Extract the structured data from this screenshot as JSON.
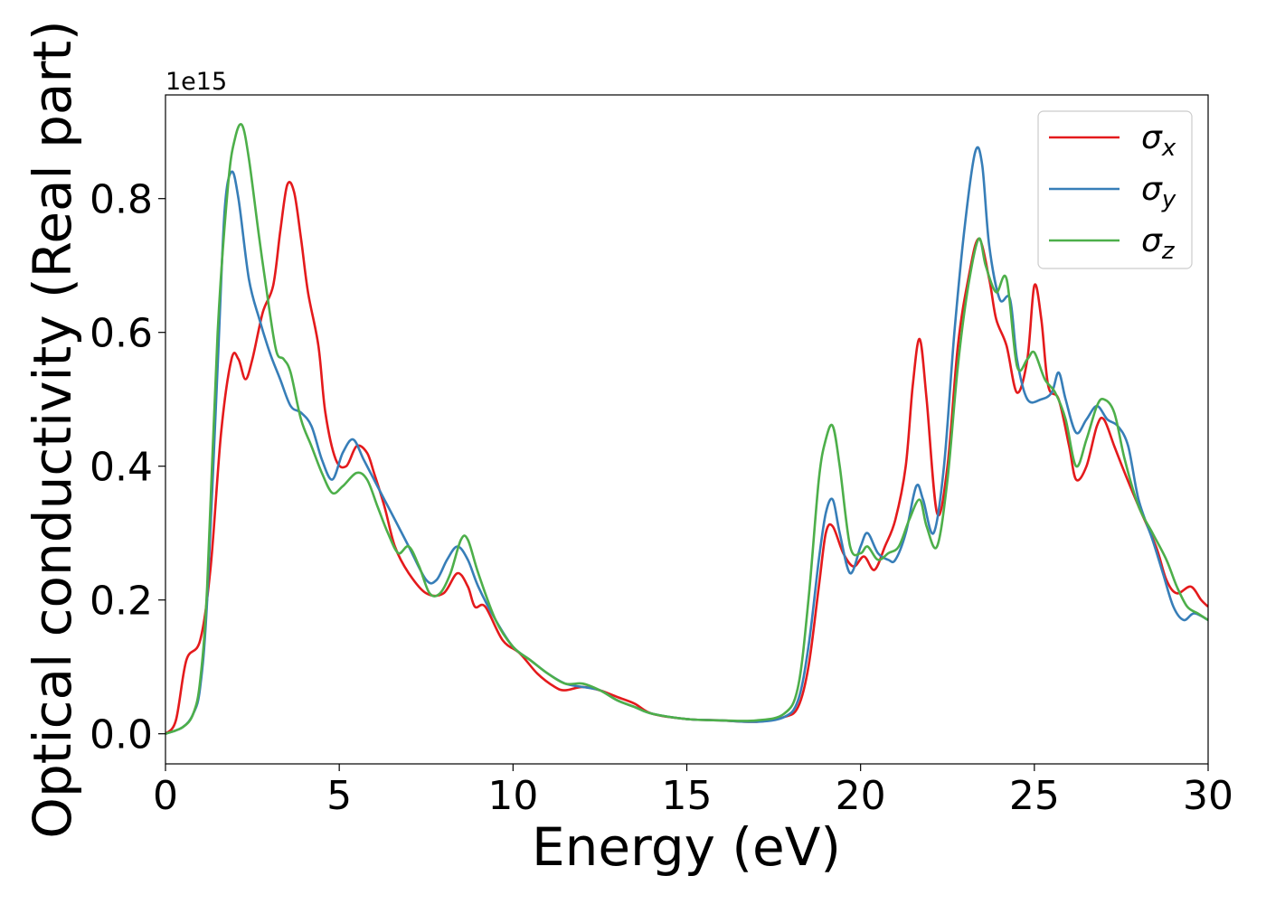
{
  "chart_data": {
    "type": "line",
    "xlabel": "Energy (eV)",
    "ylabel": "Optical conductivity (Real part)",
    "offset_label": "1e15",
    "xlim": [
      0,
      30
    ],
    "ylim": [
      -0.045,
      0.955
    ],
    "x_ticks": [
      "0",
      "5",
      "10",
      "15",
      "20",
      "25",
      "30"
    ],
    "y_ticks": [
      "0.0",
      "0.2",
      "0.4",
      "0.6",
      "0.8"
    ],
    "grid": false,
    "legend_position": "top-right",
    "series": [
      {
        "name": "σ",
        "name_subscript": "x",
        "color": "#e41a1c",
        "points": [
          [
            0,
            0
          ],
          [
            0.3,
            0.02
          ],
          [
            0.6,
            0.11
          ],
          [
            1.0,
            0.14
          ],
          [
            1.3,
            0.25
          ],
          [
            1.6,
            0.45
          ],
          [
            1.9,
            0.56
          ],
          [
            2.1,
            0.56
          ],
          [
            2.3,
            0.53
          ],
          [
            2.5,
            0.56
          ],
          [
            2.8,
            0.63
          ],
          [
            3.1,
            0.67
          ],
          [
            3.3,
            0.75
          ],
          [
            3.5,
            0.82
          ],
          [
            3.7,
            0.81
          ],
          [
            3.9,
            0.74
          ],
          [
            4.1,
            0.66
          ],
          [
            4.4,
            0.58
          ],
          [
            4.6,
            0.48
          ],
          [
            4.9,
            0.41
          ],
          [
            5.2,
            0.4
          ],
          [
            5.5,
            0.43
          ],
          [
            5.8,
            0.42
          ],
          [
            6.0,
            0.39
          ],
          [
            6.3,
            0.34
          ],
          [
            6.6,
            0.28
          ],
          [
            7.0,
            0.24
          ],
          [
            7.5,
            0.21
          ],
          [
            8.0,
            0.21
          ],
          [
            8.4,
            0.24
          ],
          [
            8.7,
            0.22
          ],
          [
            8.9,
            0.19
          ],
          [
            9.2,
            0.19
          ],
          [
            9.7,
            0.14
          ],
          [
            10.2,
            0.12
          ],
          [
            10.7,
            0.09
          ],
          [
            11.2,
            0.07
          ],
          [
            11.5,
            0.065
          ],
          [
            12.0,
            0.07
          ],
          [
            12.5,
            0.065
          ],
          [
            13.0,
            0.055
          ],
          [
            13.5,
            0.045
          ],
          [
            14.0,
            0.03
          ],
          [
            15.0,
            0.022
          ],
          [
            16.0,
            0.02
          ],
          [
            17.0,
            0.018
          ],
          [
            17.8,
            0.025
          ],
          [
            18.2,
            0.04
          ],
          [
            18.5,
            0.1
          ],
          [
            18.8,
            0.22
          ],
          [
            19.0,
            0.3
          ],
          [
            19.2,
            0.31
          ],
          [
            19.5,
            0.27
          ],
          [
            19.8,
            0.25
          ],
          [
            20.1,
            0.265
          ],
          [
            20.4,
            0.245
          ],
          [
            20.7,
            0.28
          ],
          [
            21.0,
            0.32
          ],
          [
            21.3,
            0.4
          ],
          [
            21.5,
            0.52
          ],
          [
            21.7,
            0.59
          ],
          [
            21.9,
            0.5
          ],
          [
            22.2,
            0.33
          ],
          [
            22.5,
            0.4
          ],
          [
            22.8,
            0.58
          ],
          [
            23.1,
            0.68
          ],
          [
            23.4,
            0.74
          ],
          [
            23.7,
            0.68
          ],
          [
            23.9,
            0.62
          ],
          [
            24.2,
            0.58
          ],
          [
            24.5,
            0.51
          ],
          [
            24.8,
            0.56
          ],
          [
            25.0,
            0.67
          ],
          [
            25.2,
            0.62
          ],
          [
            25.4,
            0.52
          ],
          [
            25.7,
            0.5
          ],
          [
            26.0,
            0.43
          ],
          [
            26.2,
            0.38
          ],
          [
            26.5,
            0.4
          ],
          [
            26.8,
            0.46
          ],
          [
            27.0,
            0.47
          ],
          [
            27.3,
            0.43
          ],
          [
            27.6,
            0.39
          ],
          [
            28.0,
            0.34
          ],
          [
            28.5,
            0.28
          ],
          [
            28.8,
            0.23
          ],
          [
            29.1,
            0.21
          ],
          [
            29.5,
            0.22
          ],
          [
            29.8,
            0.2
          ],
          [
            30.0,
            0.19
          ]
        ]
      },
      {
        "name": "σ",
        "name_subscript": "y",
        "color": "#377eb8",
        "points": [
          [
            0,
            0
          ],
          [
            0.5,
            0.01
          ],
          [
            0.8,
            0.03
          ],
          [
            1.0,
            0.07
          ],
          [
            1.2,
            0.2
          ],
          [
            1.5,
            0.55
          ],
          [
            1.7,
            0.78
          ],
          [
            1.9,
            0.84
          ],
          [
            2.1,
            0.8
          ],
          [
            2.4,
            0.68
          ],
          [
            2.7,
            0.62
          ],
          [
            3.0,
            0.57
          ],
          [
            3.3,
            0.53
          ],
          [
            3.6,
            0.49
          ],
          [
            3.9,
            0.48
          ],
          [
            4.2,
            0.46
          ],
          [
            4.5,
            0.41
          ],
          [
            4.8,
            0.38
          ],
          [
            5.1,
            0.42
          ],
          [
            5.4,
            0.44
          ],
          [
            5.7,
            0.41
          ],
          [
            6.0,
            0.38
          ],
          [
            6.3,
            0.35
          ],
          [
            6.6,
            0.32
          ],
          [
            7.0,
            0.28
          ],
          [
            7.5,
            0.23
          ],
          [
            7.8,
            0.23
          ],
          [
            8.1,
            0.26
          ],
          [
            8.4,
            0.28
          ],
          [
            8.7,
            0.26
          ],
          [
            9.0,
            0.22
          ],
          [
            9.5,
            0.17
          ],
          [
            10.0,
            0.13
          ],
          [
            10.5,
            0.11
          ],
          [
            11.0,
            0.09
          ],
          [
            11.5,
            0.075
          ],
          [
            12.0,
            0.07
          ],
          [
            12.5,
            0.065
          ],
          [
            13.0,
            0.05
          ],
          [
            13.5,
            0.04
          ],
          [
            14.0,
            0.03
          ],
          [
            15.0,
            0.022
          ],
          [
            16.0,
            0.02
          ],
          [
            17.0,
            0.018
          ],
          [
            17.8,
            0.025
          ],
          [
            18.2,
            0.05
          ],
          [
            18.5,
            0.13
          ],
          [
            18.8,
            0.26
          ],
          [
            19.0,
            0.33
          ],
          [
            19.2,
            0.35
          ],
          [
            19.4,
            0.3
          ],
          [
            19.7,
            0.24
          ],
          [
            20.0,
            0.28
          ],
          [
            20.2,
            0.3
          ],
          [
            20.5,
            0.27
          ],
          [
            20.8,
            0.26
          ],
          [
            21.0,
            0.26
          ],
          [
            21.3,
            0.3
          ],
          [
            21.6,
            0.37
          ],
          [
            21.8,
            0.35
          ],
          [
            22.1,
            0.3
          ],
          [
            22.4,
            0.4
          ],
          [
            22.7,
            0.6
          ],
          [
            23.0,
            0.76
          ],
          [
            23.3,
            0.87
          ],
          [
            23.5,
            0.85
          ],
          [
            23.7,
            0.73
          ],
          [
            24.0,
            0.65
          ],
          [
            24.3,
            0.65
          ],
          [
            24.5,
            0.56
          ],
          [
            24.8,
            0.5
          ],
          [
            25.2,
            0.5
          ],
          [
            25.5,
            0.51
          ],
          [
            25.7,
            0.54
          ],
          [
            25.9,
            0.5
          ],
          [
            26.2,
            0.45
          ],
          [
            26.5,
            0.47
          ],
          [
            26.8,
            0.49
          ],
          [
            27.1,
            0.47
          ],
          [
            27.4,
            0.46
          ],
          [
            27.7,
            0.43
          ],
          [
            28.0,
            0.35
          ],
          [
            28.4,
            0.29
          ],
          [
            28.7,
            0.24
          ],
          [
            29.0,
            0.19
          ],
          [
            29.3,
            0.17
          ],
          [
            29.6,
            0.18
          ],
          [
            30.0,
            0.17
          ]
        ]
      },
      {
        "name": "σ",
        "name_subscript": "z",
        "color": "#4daf4a",
        "points": [
          [
            0,
            0
          ],
          [
            0.5,
            0.01
          ],
          [
            0.8,
            0.03
          ],
          [
            1.0,
            0.08
          ],
          [
            1.2,
            0.22
          ],
          [
            1.5,
            0.6
          ],
          [
            1.8,
            0.82
          ],
          [
            2.0,
            0.89
          ],
          [
            2.2,
            0.91
          ],
          [
            2.4,
            0.86
          ],
          [
            2.7,
            0.74
          ],
          [
            3.0,
            0.63
          ],
          [
            3.2,
            0.57
          ],
          [
            3.4,
            0.56
          ],
          [
            3.6,
            0.54
          ],
          [
            3.9,
            0.47
          ],
          [
            4.2,
            0.43
          ],
          [
            4.5,
            0.39
          ],
          [
            4.8,
            0.36
          ],
          [
            5.1,
            0.37
          ],
          [
            5.5,
            0.39
          ],
          [
            5.8,
            0.38
          ],
          [
            6.1,
            0.34
          ],
          [
            6.4,
            0.3
          ],
          [
            6.7,
            0.27
          ],
          [
            7.0,
            0.28
          ],
          [
            7.3,
            0.25
          ],
          [
            7.6,
            0.21
          ],
          [
            7.9,
            0.21
          ],
          [
            8.2,
            0.24
          ],
          [
            8.5,
            0.29
          ],
          [
            8.7,
            0.29
          ],
          [
            9.0,
            0.24
          ],
          [
            9.5,
            0.17
          ],
          [
            10.0,
            0.13
          ],
          [
            10.5,
            0.11
          ],
          [
            11.0,
            0.09
          ],
          [
            11.5,
            0.075
          ],
          [
            12.0,
            0.075
          ],
          [
            12.5,
            0.065
          ],
          [
            13.0,
            0.05
          ],
          [
            13.5,
            0.04
          ],
          [
            14.0,
            0.03
          ],
          [
            15.0,
            0.022
          ],
          [
            16.0,
            0.02
          ],
          [
            17.0,
            0.02
          ],
          [
            17.8,
            0.03
          ],
          [
            18.2,
            0.07
          ],
          [
            18.5,
            0.2
          ],
          [
            18.8,
            0.38
          ],
          [
            19.0,
            0.44
          ],
          [
            19.2,
            0.46
          ],
          [
            19.4,
            0.4
          ],
          [
            19.7,
            0.28
          ],
          [
            20.0,
            0.27
          ],
          [
            20.2,
            0.28
          ],
          [
            20.5,
            0.26
          ],
          [
            20.8,
            0.27
          ],
          [
            21.1,
            0.28
          ],
          [
            21.4,
            0.32
          ],
          [
            21.7,
            0.35
          ],
          [
            21.9,
            0.31
          ],
          [
            22.2,
            0.28
          ],
          [
            22.5,
            0.38
          ],
          [
            22.8,
            0.55
          ],
          [
            23.1,
            0.67
          ],
          [
            23.4,
            0.74
          ],
          [
            23.6,
            0.7
          ],
          [
            23.9,
            0.66
          ],
          [
            24.2,
            0.68
          ],
          [
            24.5,
            0.55
          ],
          [
            24.8,
            0.56
          ],
          [
            25.0,
            0.57
          ],
          [
            25.3,
            0.53
          ],
          [
            25.6,
            0.51
          ],
          [
            25.9,
            0.47
          ],
          [
            26.2,
            0.4
          ],
          [
            26.5,
            0.44
          ],
          [
            26.8,
            0.49
          ],
          [
            27.0,
            0.5
          ],
          [
            27.3,
            0.48
          ],
          [
            27.6,
            0.41
          ],
          [
            28.0,
            0.34
          ],
          [
            28.4,
            0.3
          ],
          [
            28.8,
            0.26
          ],
          [
            29.1,
            0.22
          ],
          [
            29.4,
            0.19
          ],
          [
            29.7,
            0.18
          ],
          [
            30.0,
            0.17
          ]
        ]
      }
    ]
  }
}
